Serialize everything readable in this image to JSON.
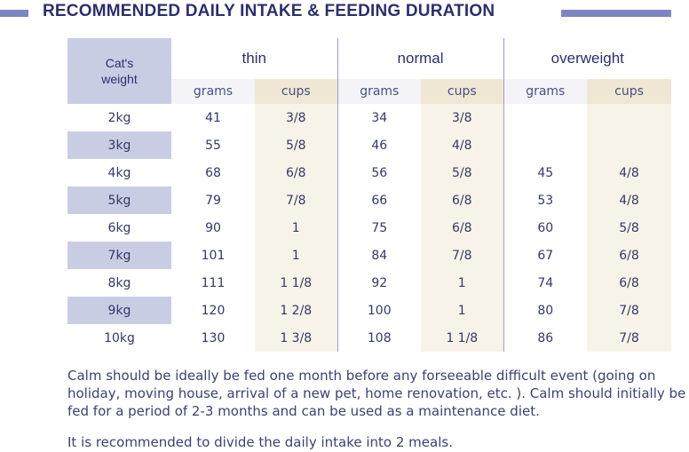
{
  "title": "RECOMMENDED DAILY INTAKE & FEEDING DURATION",
  "table": {
    "weight_header_line1": "Cat's",
    "weight_header_line2": "weight",
    "groups": [
      "thin",
      "normal",
      "overweight"
    ],
    "subheaders": [
      "grams",
      "cups",
      "grams",
      "cups",
      "grams",
      "cups"
    ],
    "rows": [
      {
        "weight": "2kg",
        "cells": [
          "41",
          "3/8",
          "34",
          "3/8",
          "",
          ""
        ]
      },
      {
        "weight": "3kg",
        "cells": [
          "55",
          "5/8",
          "46",
          "4/8",
          "",
          ""
        ]
      },
      {
        "weight": "4kg",
        "cells": [
          "68",
          "6/8",
          "56",
          "5/8",
          "45",
          "4/8"
        ]
      },
      {
        "weight": "5kg",
        "cells": [
          "79",
          "7/8",
          "66",
          "6/8",
          "53",
          "4/8"
        ]
      },
      {
        "weight": "6kg",
        "cells": [
          "90",
          "1",
          "75",
          "6/8",
          "60",
          "5/8"
        ]
      },
      {
        "weight": "7kg",
        "cells": [
          "101",
          "1",
          "84",
          "7/8",
          "67",
          "6/8"
        ]
      },
      {
        "weight": "8kg",
        "cells": [
          "111",
          "1 1/8",
          "92",
          "1",
          "74",
          "6/8"
        ]
      },
      {
        "weight": "9kg",
        "cells": [
          "120",
          "1 2/8",
          "100",
          "1",
          "80",
          "7/8"
        ]
      },
      {
        "weight": "10kg",
        "cells": [
          "130",
          "1 3/8",
          "108",
          "1 1/8",
          "86",
          "7/8"
        ]
      }
    ]
  },
  "paragraph1": "Calm should be ideally be fed one month before any forseeable difficult event (going on holiday, moving house, arrival of a new pet, home renovation, etc. ).  Calm should initially be fed for a period of 2-3 months and can be used as a maintenance diet.",
  "paragraph2": "It is recommended to divide the daily intake into 2 meals.",
  "colors": {
    "accent": "#7d86c2",
    "title": "#2d2f6b",
    "weight_band": "#c9cde4",
    "cups_band": "#efe7d4"
  }
}
